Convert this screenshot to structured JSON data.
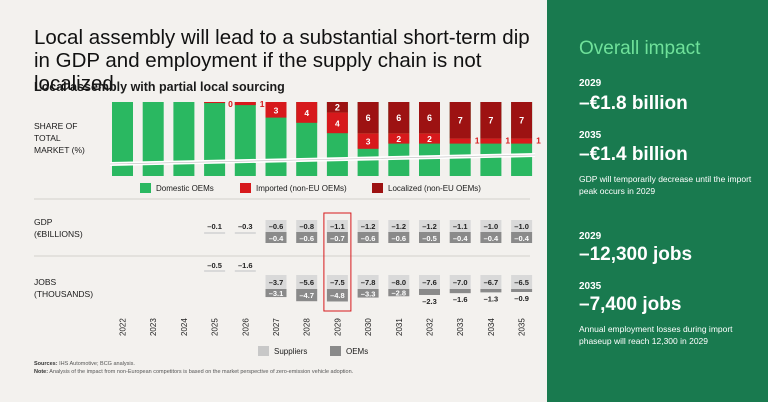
{
  "headline": "Local assembly will lead to a substantial short-term dip in GDP and employment if the supply chain is not localized",
  "chart_data": {
    "type": "bar",
    "subtitle": "Local assembly with partial local sourcing",
    "years": [
      "2022",
      "2023",
      "2024",
      "2025",
      "2026",
      "2027",
      "2028",
      "2029",
      "2030",
      "2031",
      "2032",
      "2033",
      "2034",
      "2035"
    ],
    "share": {
      "label": "SHARE OF\nTOTAL\nMARKET (%)",
      "series": [
        {
          "name": "Domestic OEMs",
          "color": "#2ab861"
        },
        {
          "name": "Imported (non-EU OEMs)",
          "color": "#d7191c"
        },
        {
          "name": "Localized (non-EU OEMs)",
          "color": "#9d1212"
        }
      ],
      "imported_labels": [
        "",
        "",
        "",
        "0",
        "1",
        "3",
        "4",
        "4",
        "3",
        "2",
        "2",
        "1",
        "1",
        "1"
      ],
      "imported_relative": [
        0,
        0,
        0,
        0.2,
        0.6,
        3,
        4,
        4,
        3,
        2,
        2,
        1,
        1,
        1
      ],
      "localized_labels": [
        "",
        "",
        "",
        "",
        "",
        "",
        "",
        "2",
        "6",
        "6",
        "6",
        "7",
        "7",
        "7"
      ],
      "localized_relative": [
        0,
        0,
        0,
        0,
        0,
        0,
        0,
        2,
        6,
        6,
        6,
        7,
        7,
        7
      ]
    },
    "gdp": {
      "label": "GDP\n(€BILLIONS)",
      "suppliers": [
        "",
        "",
        "",
        "–0.1",
        "–0.3",
        "–0.6",
        "–0.8",
        "–1.1",
        "–1.2",
        "–1.2",
        "–1.2",
        "–1.1",
        "–1.0",
        "–1.0"
      ],
      "oems": [
        "",
        "",
        "",
        "",
        "",
        "–0.4",
        "–0.6",
        "–0.7",
        "–0.6",
        "–0.6",
        "–0.5",
        "–0.4",
        "–0.4",
        "–0.4"
      ]
    },
    "jobs": {
      "label": "JOBS\n(THOUSANDS)",
      "suppliers": [
        "",
        "",
        "",
        "–0.5",
        "–1.6",
        "–3.7",
        "–5.6",
        "–7.5",
        "–7.8",
        "–8.0",
        "–7.6",
        "–7.0",
        "–6.7",
        "–6.5"
      ],
      "oems": [
        "",
        "",
        "",
        "",
        "",
        "–3.1",
        "–4.7",
        "–4.8",
        "–3.3",
        "–2.8",
        "–2.3",
        "–1.6",
        "–1.3",
        "–0.9"
      ]
    },
    "highlight_year": "2029",
    "legend_bottom": [
      {
        "name": "Suppliers",
        "color": "#c8c8c8"
      },
      {
        "name": "OEMs",
        "color": "#8a8a8a"
      }
    ]
  },
  "sources": {
    "label": "Sources:",
    "text": "IHS Automotive; BCG analysis."
  },
  "note": {
    "label": "Note:",
    "text": "Analysis of the impact from non-European competitors is based on the market perspective of zero-emission vehicle adoption."
  },
  "panel": {
    "title": "Overall impact",
    "gdp_2029_year": "2029",
    "gdp_2029_value": "–€1.8 billion",
    "gdp_2035_year": "2035",
    "gdp_2035_value": "–€1.4 billion",
    "gdp_desc": "GDP will temporarily decrease until the import peak occurs in 2029",
    "jobs_2029_year": "2029",
    "jobs_2029_value": "–12,300 jobs",
    "jobs_2035_year": "2035",
    "jobs_2035_value": "–7,400 jobs",
    "jobs_desc": "Annual employment losses during import phaseup will reach 12,300 in 2029"
  }
}
